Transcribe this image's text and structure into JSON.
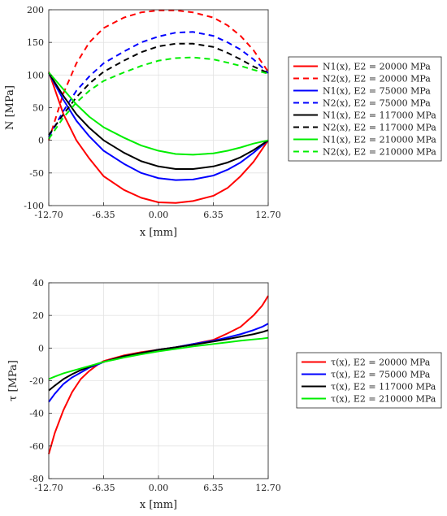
{
  "chart_data": [
    {
      "type": "line",
      "xlabel": "x [mm]",
      "ylabel": "N [MPa]",
      "xlim": [
        -12.7,
        12.7
      ],
      "ylim": [
        -100,
        200
      ],
      "xticks": [
        "-12.70",
        "-6.35",
        "0.00",
        "6.35",
        "12.70"
      ],
      "yticks": [
        "-100",
        "-50",
        "0",
        "50",
        "100",
        "150",
        "200"
      ],
      "grid": true,
      "legend_position": "right",
      "series": [
        {
          "name": "N1(x), E2 = 20000 MPa",
          "color": "#ff0000",
          "dash": "solid",
          "x": [
            -12.7,
            -11,
            -9.5,
            -8,
            -6.35,
            -4,
            -2,
            0,
            2,
            4,
            6.35,
            8,
            9.5,
            11,
            12.7
          ],
          "y": [
            105,
            40,
            0,
            -28,
            -55,
            -76,
            -88,
            -95,
            -96,
            -93,
            -85,
            -73,
            -55,
            -33,
            0
          ]
        },
        {
          "name": "N2(x), E2 = 20000 MPa",
          "color": "#ff0000",
          "dash": "dashed",
          "x": [
            -12.7,
            -11,
            -9.5,
            -8,
            -6.35,
            -4,
            -2,
            0,
            2,
            4,
            6.35,
            8,
            9.5,
            11,
            12.7
          ],
          "y": [
            0,
            72,
            118,
            150,
            172,
            188,
            196,
            199,
            199,
            196,
            188,
            176,
            160,
            138,
            105
          ]
        },
        {
          "name": "N1(x), E2 = 75000 MPa",
          "color": "#0000ff",
          "dash": "solid",
          "x": [
            -12.7,
            -11,
            -9.5,
            -8,
            -6.35,
            -4,
            -2,
            0,
            2,
            4,
            6.35,
            8,
            9.5,
            11,
            12.7
          ],
          "y": [
            103,
            62,
            30,
            6,
            -16,
            -36,
            -50,
            -58,
            -61,
            -60,
            -54,
            -45,
            -34,
            -19,
            0
          ]
        },
        {
          "name": "N2(x), E2 = 75000 MPa",
          "color": "#0000ff",
          "dash": "dashed",
          "x": [
            -12.7,
            -11,
            -9.5,
            -8,
            -6.35,
            -4,
            -2,
            0,
            2,
            4,
            6.35,
            8,
            9.5,
            11,
            12.7
          ],
          "y": [
            5,
            45,
            76,
            98,
            118,
            136,
            150,
            159,
            165,
            166,
            160,
            150,
            139,
            124,
            103
          ]
        },
        {
          "name": "N1(x), E2 = 117000 MPa",
          "color": "#000000",
          "dash": "solid",
          "x": [
            -12.7,
            -11,
            -9.5,
            -8,
            -6.35,
            -4,
            -2,
            0,
            2,
            4,
            6.35,
            8,
            9.5,
            11,
            12.7
          ],
          "y": [
            103,
            68,
            40,
            19,
            0,
            -19,
            -32,
            -40,
            -44,
            -44,
            -40,
            -34,
            -26,
            -15,
            0
          ]
        },
        {
          "name": "N2(x), E2 = 117000 MPa",
          "color": "#000000",
          "dash": "dashed",
          "x": [
            -12.7,
            -11,
            -9.5,
            -8,
            -6.35,
            -4,
            -2,
            0,
            2,
            4,
            6.35,
            8,
            9.5,
            11,
            12.7
          ],
          "y": [
            8,
            40,
            66,
            87,
            105,
            122,
            135,
            144,
            148,
            148,
            143,
            134,
            124,
            113,
            103
          ]
        },
        {
          "name": "N1(x), E2 = 210000 MPa",
          "color": "#00ee00",
          "dash": "solid",
          "x": [
            -12.7,
            -11,
            -9.5,
            -8,
            -6.35,
            -4,
            -2,
            0,
            2,
            4,
            6.35,
            8,
            9.5,
            11,
            12.7
          ],
          "y": [
            104,
            78,
            55,
            36,
            20,
            4,
            -8,
            -16,
            -21,
            -22,
            -20,
            -16,
            -11,
            -5,
            0
          ]
        },
        {
          "name": "N2(x), E2 = 210000 MPa",
          "color": "#00ee00",
          "dash": "dashed",
          "x": [
            -12.7,
            -11,
            -9.5,
            -8,
            -6.35,
            -4,
            -2,
            0,
            2,
            4,
            6.35,
            8,
            9.5,
            11,
            12.7
          ],
          "y": [
            2,
            35,
            58,
            76,
            91,
            104,
            114,
            122,
            126,
            127,
            124,
            119,
            114,
            108,
            102
          ]
        }
      ]
    },
    {
      "type": "line",
      "xlabel": "x [mm]",
      "ylabel": "τ [MPa]",
      "xlim": [
        -12.7,
        12.7
      ],
      "ylim": [
        -80,
        40
      ],
      "xticks": [
        "-12.70",
        "-6.35",
        "0.00",
        "6.35",
        "12.70"
      ],
      "yticks": [
        "-80",
        "-60",
        "-40",
        "-20",
        "0",
        "20",
        "40"
      ],
      "grid": true,
      "legend_position": "right",
      "series": [
        {
          "name": "τ(x), E2 = 20000 MPa",
          "color": "#ff0000",
          "dash": "solid",
          "x": [
            -12.7,
            -12,
            -11,
            -10,
            -9,
            -8,
            -7,
            -6.35,
            -5,
            -4,
            -2,
            0,
            2,
            4,
            6.35,
            8,
            9.5,
            11,
            12,
            12.7
          ],
          "y": [
            -65,
            -52,
            -38,
            -27,
            -19,
            -14,
            -10,
            -8,
            -6,
            -4.5,
            -2.5,
            -1,
            0.5,
            2.5,
            5,
            9,
            13,
            20,
            26,
            32
          ]
        },
        {
          "name": "τ(x), E2 = 75000 MPa",
          "color": "#0000ff",
          "dash": "solid",
          "x": [
            -12.7,
            -12,
            -11,
            -10,
            -9,
            -8,
            -7,
            -6.35,
            -5,
            -4,
            -2,
            0,
            2,
            4,
            6.35,
            8,
            9.5,
            11,
            12,
            12.7
          ],
          "y": [
            -33,
            -28,
            -22,
            -18,
            -15,
            -12,
            -10,
            -8.5,
            -6.5,
            -5,
            -3,
            -1,
            0.5,
            2.5,
            4.5,
            6.5,
            8.5,
            11,
            13,
            15
          ]
        },
        {
          "name": "τ(x), E2 = 117000 MPa",
          "color": "#000000",
          "dash": "solid",
          "x": [
            -12.7,
            -12,
            -11,
            -10,
            -9,
            -8,
            -7,
            -6.35,
            -5,
            -4,
            -2,
            0,
            2,
            4,
            6.35,
            8,
            9.5,
            11,
            12,
            12.7
          ],
          "y": [
            -26,
            -23,
            -19,
            -16,
            -13.5,
            -11.5,
            -9.5,
            -8.5,
            -6.5,
            -5,
            -3,
            -1,
            0.5,
            2,
            4,
            5.5,
            7,
            8.5,
            9.8,
            11
          ]
        },
        {
          "name": "τ(x), E2 = 210000 MPa",
          "color": "#00ee00",
          "dash": "solid",
          "x": [
            -12.7,
            -12,
            -11,
            -10,
            -9,
            -8,
            -7,
            -6.35,
            -5,
            -4,
            -2,
            0,
            2,
            4,
            6.35,
            8,
            9.5,
            11,
            12,
            12.7
          ],
          "y": [
            -19,
            -17.5,
            -15.5,
            -14,
            -12.5,
            -11,
            -9.5,
            -8.5,
            -7,
            -5.8,
            -3.8,
            -2,
            -0.5,
            1,
            2.5,
            3.5,
            4.5,
            5.3,
            5.8,
            6.3
          ]
        }
      ]
    }
  ]
}
